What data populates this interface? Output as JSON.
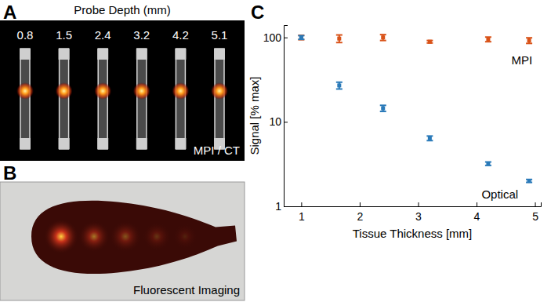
{
  "panels": {
    "a": {
      "label": "A",
      "title": "Probe Depth (mm)",
      "depths": [
        0.8,
        1.5,
        2.4,
        3.2,
        4.2,
        5.1
      ],
      "caption": "MPI / CT"
    },
    "b": {
      "label": "B",
      "caption": "Fluorescent Imaging"
    }
  },
  "chart_data": {
    "label": "C",
    "type": "scatter",
    "x_label": "Tissue Thickness [mm]",
    "y_label": "Signal [% max]",
    "log": "y",
    "xlim": [
      0.7,
      5.1
    ],
    "xticks": [
      1,
      2,
      3,
      4,
      5
    ],
    "ylim": [
      1,
      140
    ],
    "yticks": [
      1,
      10,
      100
    ],
    "x": [
      1.0,
      1.65,
      2.4,
      3.2,
      4.2,
      4.9
    ],
    "series": [
      {
        "name": "MPI",
        "color": "#d95319",
        "values": [
          100,
          97,
          100,
          89,
          95,
          92
        ],
        "errors": [
          6,
          10,
          8,
          3,
          6,
          7
        ]
      },
      {
        "name": "Optical",
        "color": "#2a7ab9",
        "values": [
          100,
          27,
          14.5,
          6.4,
          3.2,
          2.0
        ],
        "errors": [
          5,
          2.5,
          1.2,
          0.4,
          0.15,
          0.08
        ]
      }
    ]
  }
}
